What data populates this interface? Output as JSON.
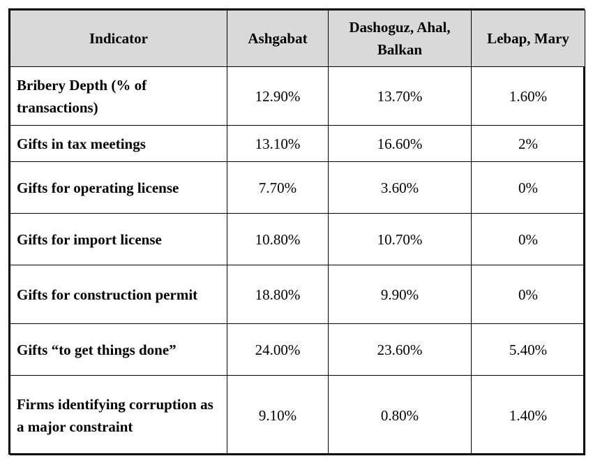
{
  "table": {
    "headers": [
      "Indicator",
      "Ashgabat",
      "Dashoguz, Ahal, Balkan",
      "Lebap, Mary"
    ],
    "rows": [
      {
        "label": "Bribery Depth (% of transactions)",
        "ashgabat": "12.90%",
        "dashoguz_ahal_balkan": "13.70%",
        "lebap_mary": "1.60%"
      },
      {
        "label": "Gifts in tax meetings",
        "ashgabat": "13.10%",
        "dashoguz_ahal_balkan": "16.60%",
        "lebap_mary": "2%"
      },
      {
        "label": "Gifts for operating license",
        "ashgabat": "7.70%",
        "dashoguz_ahal_balkan": "3.60%",
        "lebap_mary": "0%"
      },
      {
        "label": "Gifts for import license",
        "ashgabat": "10.80%",
        "dashoguz_ahal_balkan": "10.70%",
        "lebap_mary": "0%"
      },
      {
        "label": "Gifts for construction permit",
        "ashgabat": "18.80%",
        "dashoguz_ahal_balkan": "9.90%",
        "lebap_mary": "0%"
      },
      {
        "label": "Gifts “to get things done”",
        "ashgabat": "24.00%",
        "dashoguz_ahal_balkan": "23.60%",
        "lebap_mary": "5.40%"
      },
      {
        "label": "Firms identifying corruption as a major constraint",
        "ashgabat": "9.10%",
        "dashoguz_ahal_balkan": "0.80%",
        "lebap_mary": "1.40%"
      }
    ]
  },
  "colors": {
    "header_background": "#d9d9d9",
    "border": "#000000"
  }
}
